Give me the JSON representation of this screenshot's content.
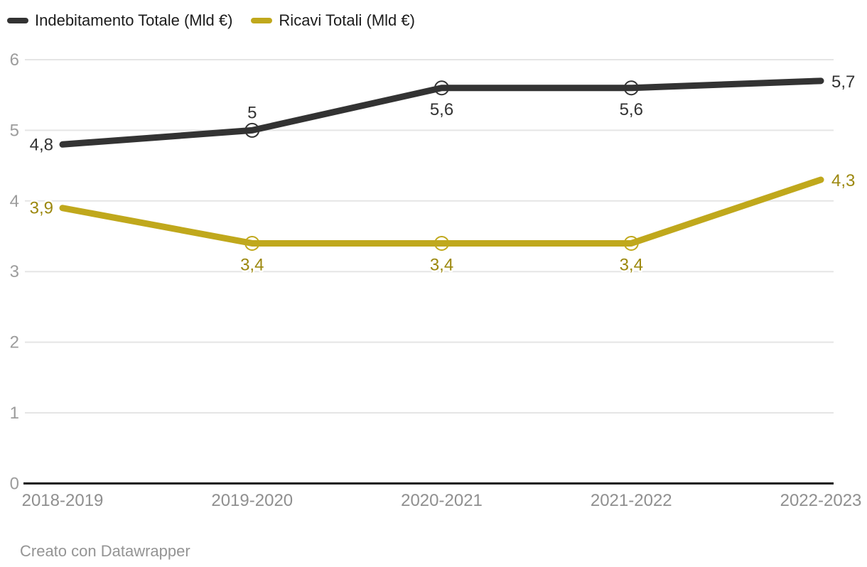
{
  "legend": {
    "items": [
      {
        "label": "Indebitamento Totale (Mld €)",
        "color": "#333333"
      },
      {
        "label": "Ricavi Totali (Mld €)",
        "color": "#c0a81c"
      }
    ]
  },
  "footer": {
    "credit": "Creato con Datawrapper"
  },
  "colors": {
    "background": "#ffffff",
    "gridline": "#e5e5e5",
    "axis_line": "#161616",
    "y_tick_label": "#9c9c9c",
    "x_tick_label": "#8f8f8f",
    "label_halo": "#ffffff"
  },
  "chart_data": {
    "type": "line",
    "title": "",
    "xlabel": "",
    "ylabel": "",
    "categories": [
      "2018-2019",
      "2019-2020",
      "2020-2021",
      "2021-2022",
      "2022-2023"
    ],
    "series": [
      {
        "name": "Indebitamento Totale (Mld €)",
        "color": "#333333",
        "label_color": "#333333",
        "values": [
          4.8,
          5,
          5.6,
          5.6,
          5.7
        ],
        "labels": [
          "4,8",
          "5",
          "5,6",
          "5,6",
          "5,7"
        ],
        "label_positions": [
          "left",
          "above",
          "below",
          "below",
          "right"
        ],
        "markers": [
          false,
          true,
          true,
          true,
          false
        ]
      },
      {
        "name": "Ricavi Totali (Mld €)",
        "color": "#c0a81c",
        "label_color": "#9c880e",
        "values": [
          3.9,
          3.4,
          3.4,
          3.4,
          4.3
        ],
        "labels": [
          "3,9",
          "3,4",
          "3,4",
          "3,4",
          "4,3"
        ],
        "label_positions": [
          "left",
          "below",
          "below",
          "below",
          "right"
        ],
        "markers": [
          false,
          true,
          true,
          true,
          false
        ]
      }
    ],
    "ylim": [
      0,
      6
    ],
    "yticks": [
      0,
      1,
      2,
      3,
      4,
      5,
      6
    ],
    "grid": true,
    "legend_position": "top"
  }
}
